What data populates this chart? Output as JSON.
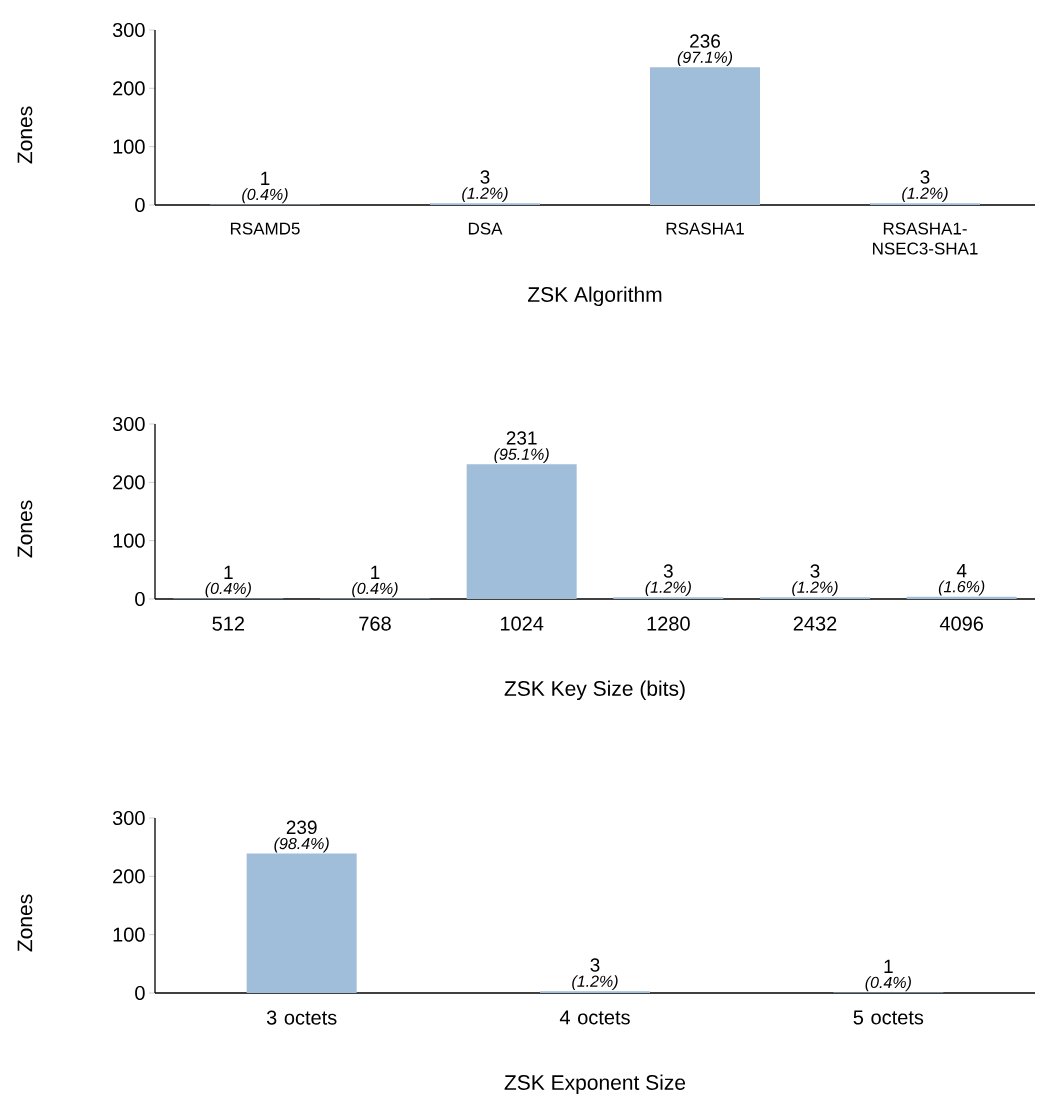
{
  "chart_data": [
    {
      "type": "bar",
      "xlabel": "ZSK Algorithm",
      "ylabel": "Zones",
      "categories": [
        "RSAMD5",
        "DSA",
        "RSASHA1",
        "RSASHA1-NSEC3-SHA1"
      ],
      "values": [
        1,
        3,
        236,
        3
      ],
      "color": "#a0bdd9",
      "ylim": [
        0,
        300
      ],
      "yticks": [
        0,
        100,
        200,
        300
      ],
      "data_labels": true,
      "annotations": [
        {
          "text": "(0.4%)",
          "x": "RSAMD5",
          "y": 1
        },
        {
          "text": "(1.2%)",
          "x": "DSA",
          "y": 3
        },
        {
          "text": "(97.1%)",
          "x": "RSASHA1",
          "y": 236
        },
        {
          "text": "(1.2%)",
          "x": "RSASHA1-NSEC3-SHA1",
          "y": 3
        }
      ]
    },
    {
      "type": "bar",
      "xlabel": "ZSK Key Size (bits)",
      "ylabel": "Zones",
      "categories": [
        "512",
        "768",
        "1024",
        "1280",
        "2432",
        "4096"
      ],
      "values": [
        1,
        1,
        231,
        3,
        3,
        4
      ],
      "color": "#a0bdd9",
      "ylim": [
        0,
        300
      ],
      "yticks": [
        0,
        100,
        200,
        300
      ],
      "data_labels": true,
      "annotations": [
        {
          "text": "(0.4%)",
          "x": "512",
          "y": 1
        },
        {
          "text": "(0.4%)",
          "x": "768",
          "y": 1
        },
        {
          "text": "(95.1%)",
          "x": "1024",
          "y": 231
        },
        {
          "text": "(1.2%)",
          "x": "1280",
          "y": 3
        },
        {
          "text": "(1.2%)",
          "x": "2432",
          "y": 3
        },
        {
          "text": "(1.6%)",
          "x": "4096",
          "y": 4
        }
      ]
    },
    {
      "type": "bar",
      "xlabel": "ZSK Exponent Size",
      "ylabel": "Zones",
      "categories": [
        "3 octets",
        "4 octets",
        "5 octets"
      ],
      "values": [
        239,
        3,
        1
      ],
      "color": "#a0bdd9",
      "ylim": [
        0,
        300
      ],
      "yticks": [
        0,
        100,
        200,
        300
      ],
      "data_labels": true,
      "annotations": [
        {
          "text": "(98.4%)",
          "x": "3 octets",
          "y": 239
        },
        {
          "text": "(1.2%)",
          "x": "4 octets",
          "y": 3
        },
        {
          "text": "(0.4%)",
          "x": "5 octets",
          "y": 1
        }
      ]
    }
  ]
}
